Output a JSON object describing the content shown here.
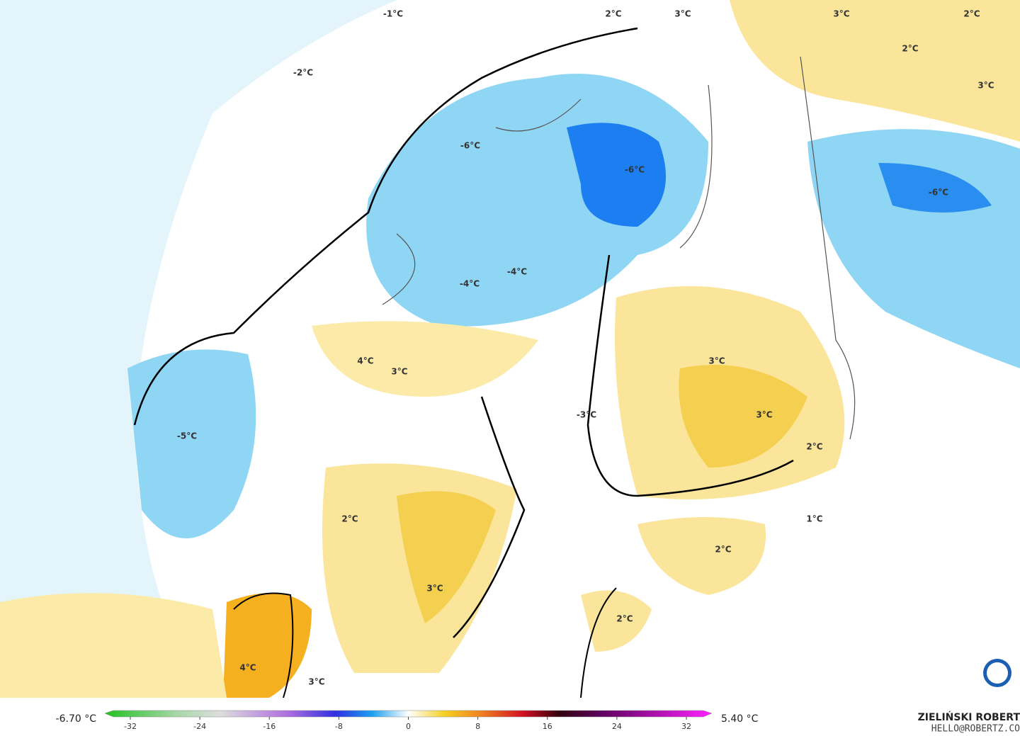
{
  "map": {
    "labels": [
      "-1°C",
      "-2°C",
      "2°C",
      "3°C",
      "3°C",
      "2°C",
      "2°C",
      "3°C",
      "-6°C",
      "-6°C",
      "-6°C",
      "-4°C",
      "-4°C",
      "4°C",
      "3°C",
      "3°C",
      "-3°C",
      "3°C",
      "2°C",
      "-5°C",
      "2°C",
      "1°C",
      "2°C",
      "3°C",
      "2°C",
      "4°C",
      "3°C"
    ]
  },
  "legend": {
    "min_label": "-6.70 °C",
    "max_label": "5.40 °C",
    "ticks": [
      -32,
      -24,
      -16,
      -8,
      0,
      8,
      16,
      24,
      32
    ]
  },
  "credit": {
    "name": "ZIELIŃSKI ROBERT",
    "email": "HELLO@ROBERTZ.CO"
  }
}
